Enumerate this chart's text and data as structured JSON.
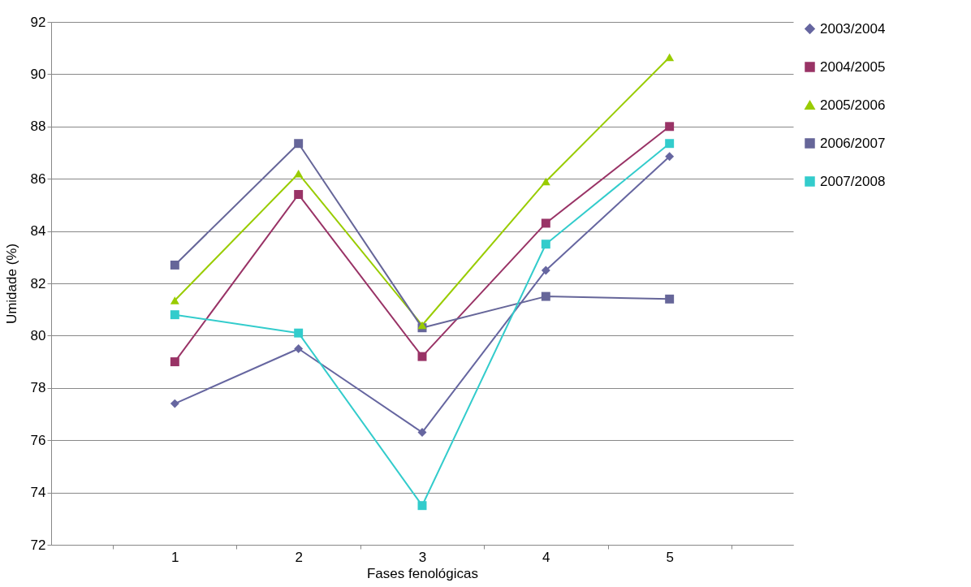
{
  "chart_data": {
    "type": "line",
    "xlabel": "Fases fenológicas",
    "ylabel": "Umidade (%)",
    "categories": [
      "1",
      "2",
      "3",
      "4",
      "5"
    ],
    "series": [
      {
        "name": "2003/2004",
        "color": "#6666a0",
        "marker": "diamond",
        "values": [
          77.4,
          79.5,
          76.3,
          82.5,
          86.85
        ]
      },
      {
        "name": "2004/2005",
        "color": "#993366",
        "marker": "square",
        "values": [
          79.0,
          85.4,
          79.2,
          84.3,
          88.0
        ]
      },
      {
        "name": "2005/2006",
        "color": "#99cc00",
        "marker": "triangle",
        "values": [
          81.35,
          86.2,
          80.4,
          85.9,
          90.65
        ]
      },
      {
        "name": "2006/2007",
        "color": "#666699",
        "marker": "square",
        "values": [
          82.7,
          87.35,
          80.3,
          81.5,
          81.4
        ]
      },
      {
        "name": "2007/2008",
        "color": "#33cccc",
        "marker": "square",
        "values": [
          80.8,
          80.1,
          73.5,
          83.5,
          87.35
        ]
      }
    ],
    "ylim": [
      72,
      92
    ],
    "yticks": [
      72,
      74,
      76,
      78,
      80,
      82,
      84,
      86,
      88,
      90,
      92
    ],
    "grid": "y",
    "legend": "right",
    "line_style": "solid"
  }
}
